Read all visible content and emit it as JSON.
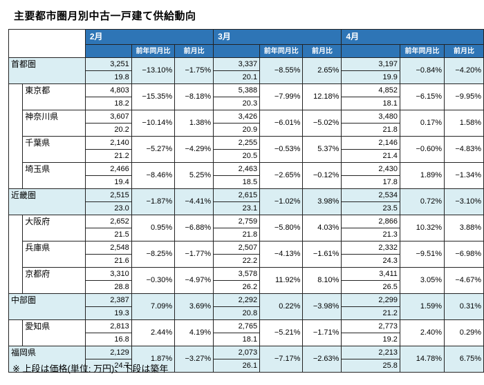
{
  "title": "主要都市圏月別中古一戸建て供給動向",
  "note": "※ 上段は価格(単位: 万円)、下段は築年",
  "months": [
    "2月",
    "3月",
    "4月"
  ],
  "sub_headers": {
    "yoy": "前年同月比",
    "mom": "前月比"
  },
  "rows": [
    {
      "name": "首都圏",
      "level": 0,
      "m": [
        [
          "3,251",
          "19.8",
          "−13.10%",
          "−1.75%"
        ],
        [
          "3,337",
          "20.1",
          "−8.55%",
          "2.65%"
        ],
        [
          "3,197",
          "19.9",
          "−0.84%",
          "−4.20%"
        ]
      ]
    },
    {
      "name": "東京都",
      "level": 1,
      "m": [
        [
          "4,803",
          "18.2",
          "−15.35%",
          "−8.18%"
        ],
        [
          "5,388",
          "20.3",
          "−7.99%",
          "12.18%"
        ],
        [
          "4,852",
          "18.1",
          "−6.15%",
          "−9.95%"
        ]
      ]
    },
    {
      "name": "神奈川県",
      "level": 1,
      "m": [
        [
          "3,607",
          "20.2",
          "−10.14%",
          "1.38%"
        ],
        [
          "3,426",
          "20.9",
          "−6.01%",
          "−5.02%"
        ],
        [
          "3,480",
          "21.8",
          "0.17%",
          "1.58%"
        ]
      ]
    },
    {
      "name": "千葉県",
      "level": 1,
      "m": [
        [
          "2,140",
          "21.2",
          "−5.27%",
          "−4.29%"
        ],
        [
          "2,255",
          "20.5",
          "−0.53%",
          "5.37%"
        ],
        [
          "2,146",
          "21.4",
          "−0.60%",
          "−4.83%"
        ]
      ]
    },
    {
      "name": "埼玉県",
      "level": 1,
      "m": [
        [
          "2,466",
          "19.4",
          "−8.46%",
          "5.25%"
        ],
        [
          "2,463",
          "18.5",
          "−2.65%",
          "−0.12%"
        ],
        [
          "2,430",
          "17.8",
          "1.89%",
          "−1.34%"
        ]
      ]
    },
    {
      "name": "近畿圏",
      "level": 0,
      "m": [
        [
          "2,515",
          "23.0",
          "−1.87%",
          "−4.41%"
        ],
        [
          "2,615",
          "23.1",
          "−1.02%",
          "3.98%"
        ],
        [
          "2,534",
          "23.5",
          "0.72%",
          "−3.10%"
        ]
      ]
    },
    {
      "name": "大阪府",
      "level": 1,
      "m": [
        [
          "2,652",
          "21.5",
          "0.95%",
          "−6.88%"
        ],
        [
          "2,759",
          "21.8",
          "−5.80%",
          "4.03%"
        ],
        [
          "2,866",
          "21.3",
          "10.32%",
          "3.88%"
        ]
      ]
    },
    {
      "name": "兵庫県",
      "level": 1,
      "m": [
        [
          "2,548",
          "21.6",
          "−8.25%",
          "−1.77%"
        ],
        [
          "2,507",
          "22.2",
          "−4.13%",
          "−1.61%"
        ],
        [
          "2,332",
          "24.3",
          "−9.51%",
          "−6.98%"
        ]
      ]
    },
    {
      "name": "京都府",
      "level": 1,
      "m": [
        [
          "3,310",
          "28.8",
          "−0.30%",
          "−4.97%"
        ],
        [
          "3,578",
          "26.2",
          "11.92%",
          "8.10%"
        ],
        [
          "3,411",
          "26.5",
          "3.05%",
          "−4.67%"
        ]
      ]
    },
    {
      "name": "中部圏",
      "level": 0,
      "m": [
        [
          "2,387",
          "19.3",
          "7.09%",
          "3.69%"
        ],
        [
          "2,292",
          "20.8",
          "0.22%",
          "−3.98%"
        ],
        [
          "2,299",
          "21.2",
          "1.59%",
          "0.31%"
        ]
      ]
    },
    {
      "name": "愛知県",
      "level": 1,
      "m": [
        [
          "2,813",
          "16.8",
          "2.44%",
          "4.19%"
        ],
        [
          "2,765",
          "18.1",
          "−5.21%",
          "−1.71%"
        ],
        [
          "2,773",
          "19.2",
          "2.40%",
          "0.29%"
        ]
      ]
    },
    {
      "name": "福岡県",
      "level": 0,
      "m": [
        [
          "2,129",
          "24.7",
          "1.87%",
          "−3.27%"
        ],
        [
          "2,073",
          "26.1",
          "−7.17%",
          "−2.63%"
        ],
        [
          "2,213",
          "25.8",
          "14.78%",
          "6.75%"
        ]
      ]
    }
  ]
}
